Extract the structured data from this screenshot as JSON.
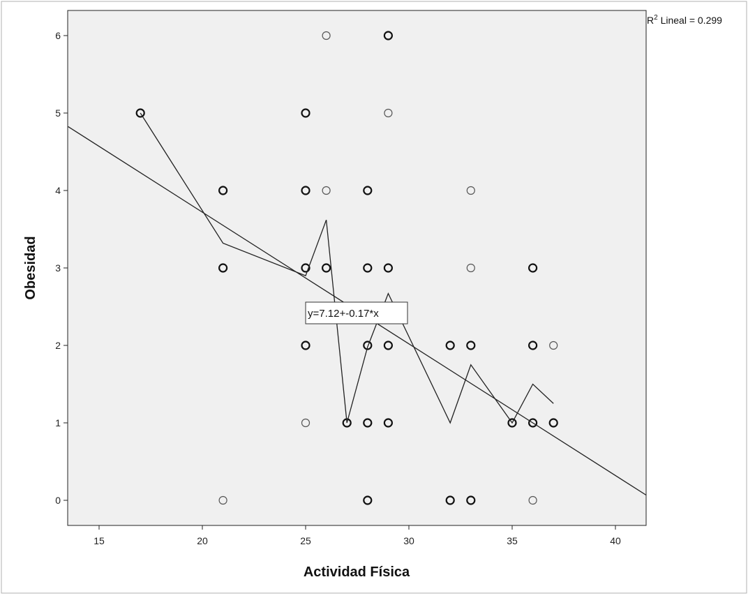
{
  "chart_data": {
    "type": "scatter",
    "title": "",
    "xlabel": "Actividad Física",
    "ylabel": "Obesidad",
    "xlim": [
      13.5,
      41.5
    ],
    "ylim": [
      -0.3,
      6.3
    ],
    "xticks": [
      15,
      20,
      25,
      30,
      35,
      40
    ],
    "yticks": [
      0,
      1,
      2,
      3,
      4,
      5,
      6
    ],
    "grid": false,
    "plot_background": "#f0f0f0",
    "points": [
      {
        "x": 17,
        "y": 5,
        "bold": true
      },
      {
        "x": 21,
        "y": 4,
        "bold": true
      },
      {
        "x": 21,
        "y": 3,
        "bold": true
      },
      {
        "x": 21,
        "y": 0,
        "bold": false
      },
      {
        "x": 25,
        "y": 5,
        "bold": true
      },
      {
        "x": 25,
        "y": 4,
        "bold": true
      },
      {
        "x": 25,
        "y": 3,
        "bold": true
      },
      {
        "x": 25,
        "y": 2,
        "bold": true
      },
      {
        "x": 25,
        "y": 1,
        "bold": false
      },
      {
        "x": 26,
        "y": 6,
        "bold": false
      },
      {
        "x": 26,
        "y": 4,
        "bold": false
      },
      {
        "x": 26,
        "y": 3,
        "bold": true
      },
      {
        "x": 27,
        "y": 1,
        "bold": true
      },
      {
        "x": 28,
        "y": 4,
        "bold": true
      },
      {
        "x": 28,
        "y": 3,
        "bold": true
      },
      {
        "x": 28,
        "y": 2,
        "bold": true
      },
      {
        "x": 28,
        "y": 1,
        "bold": true
      },
      {
        "x": 28,
        "y": 0,
        "bold": true
      },
      {
        "x": 29,
        "y": 6,
        "bold": true
      },
      {
        "x": 29,
        "y": 5,
        "bold": false
      },
      {
        "x": 29,
        "y": 3,
        "bold": true
      },
      {
        "x": 29,
        "y": 2,
        "bold": true
      },
      {
        "x": 29,
        "y": 1,
        "bold": true
      },
      {
        "x": 32,
        "y": 2,
        "bold": true
      },
      {
        "x": 32,
        "y": 0,
        "bold": true
      },
      {
        "x": 33,
        "y": 4,
        "bold": false
      },
      {
        "x": 33,
        "y": 3,
        "bold": false
      },
      {
        "x": 33,
        "y": 2,
        "bold": true
      },
      {
        "x": 33,
        "y": 0,
        "bold": true
      },
      {
        "x": 35,
        "y": 1,
        "bold": true
      },
      {
        "x": 36,
        "y": 3,
        "bold": true
      },
      {
        "x": 36,
        "y": 2,
        "bold": true
      },
      {
        "x": 36,
        "y": 1,
        "bold": true
      },
      {
        "x": 36,
        "y": 0,
        "bold": false
      },
      {
        "x": 37,
        "y": 2,
        "bold": false
      },
      {
        "x": 37,
        "y": 1,
        "bold": true
      }
    ],
    "fit_line": {
      "intercept": 7.12,
      "slope": -0.17,
      "label": "y=7.12+-0.17*x"
    },
    "means_line": [
      {
        "x": 17,
        "y": 5.0
      },
      {
        "x": 21,
        "y": 3.32
      },
      {
        "x": 25,
        "y": 2.9
      },
      {
        "x": 26,
        "y": 3.62
      },
      {
        "x": 27,
        "y": 1.0
      },
      {
        "x": 28,
        "y": 1.98
      },
      {
        "x": 29,
        "y": 2.67
      },
      {
        "x": 32,
        "y": 1.0
      },
      {
        "x": 33,
        "y": 1.75
      },
      {
        "x": 35,
        "y": 1.0
      },
      {
        "x": 36,
        "y": 1.5
      },
      {
        "x": 37,
        "y": 1.25
      }
    ],
    "r2_label": {
      "prefix": "R",
      "sup": "2",
      "text": " Lineal = 0.299"
    }
  }
}
